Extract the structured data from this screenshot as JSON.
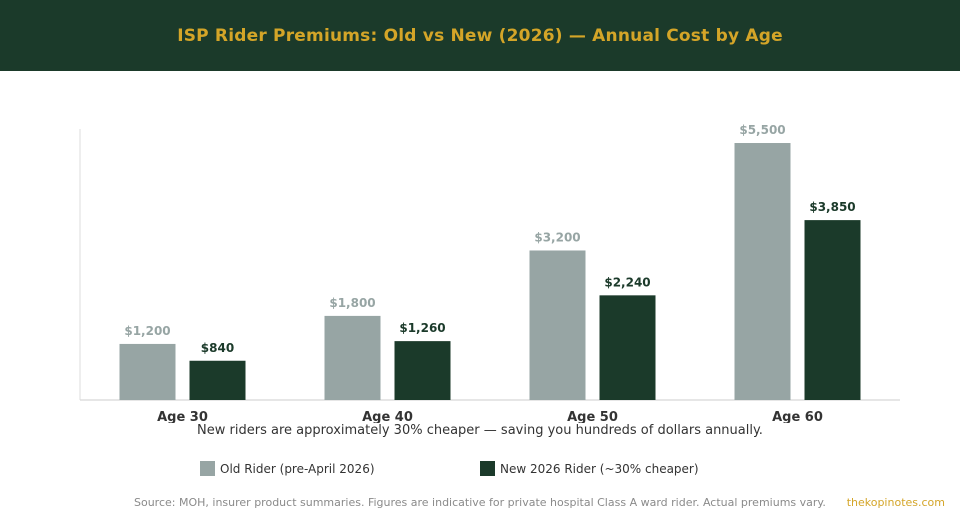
{
  "header": {
    "title": "ISP Rider Premiums: Old vs New (2026) — Annual Cost by Age"
  },
  "colors": {
    "header_bg": "#1b3a2a",
    "accent": "#d4a528",
    "old": "#97a5a4",
    "new": "#1b3a2a"
  },
  "chart_data": {
    "type": "bar",
    "categories": [
      "Age 30",
      "Age 40",
      "Age 50",
      "Age 60"
    ],
    "series": [
      {
        "name": "Old Rider (pre-April 2026)",
        "values": [
          1200,
          1800,
          3200,
          5500
        ],
        "labels": [
          "$1,200",
          "$1,800",
          "$3,200",
          "$5,500"
        ],
        "color": "#97a5a4"
      },
      {
        "name": "New 2026 Rider (~30% cheaper)",
        "values": [
          840,
          1260,
          2240,
          3850
        ],
        "labels": [
          "$840",
          "$1,260",
          "$2,240",
          "$3,850"
        ],
        "color": "#1b3a2a"
      }
    ],
    "ylim": [
      0,
      5800
    ],
    "grid": false,
    "legend_position": "bottom"
  },
  "subtitle": "New riders are approximately 30% cheaper — saving you hundreds of dollars annually.",
  "legend": {
    "old_label": "Old Rider (pre-April 2026)",
    "new_label": "New 2026 Rider (~30% cheaper)"
  },
  "footer": {
    "source": "Source: MOH, insurer product summaries. Figures are indicative for private hospital Class A ward rider. Actual premiums vary.",
    "brand": "thekopinotes.com"
  }
}
